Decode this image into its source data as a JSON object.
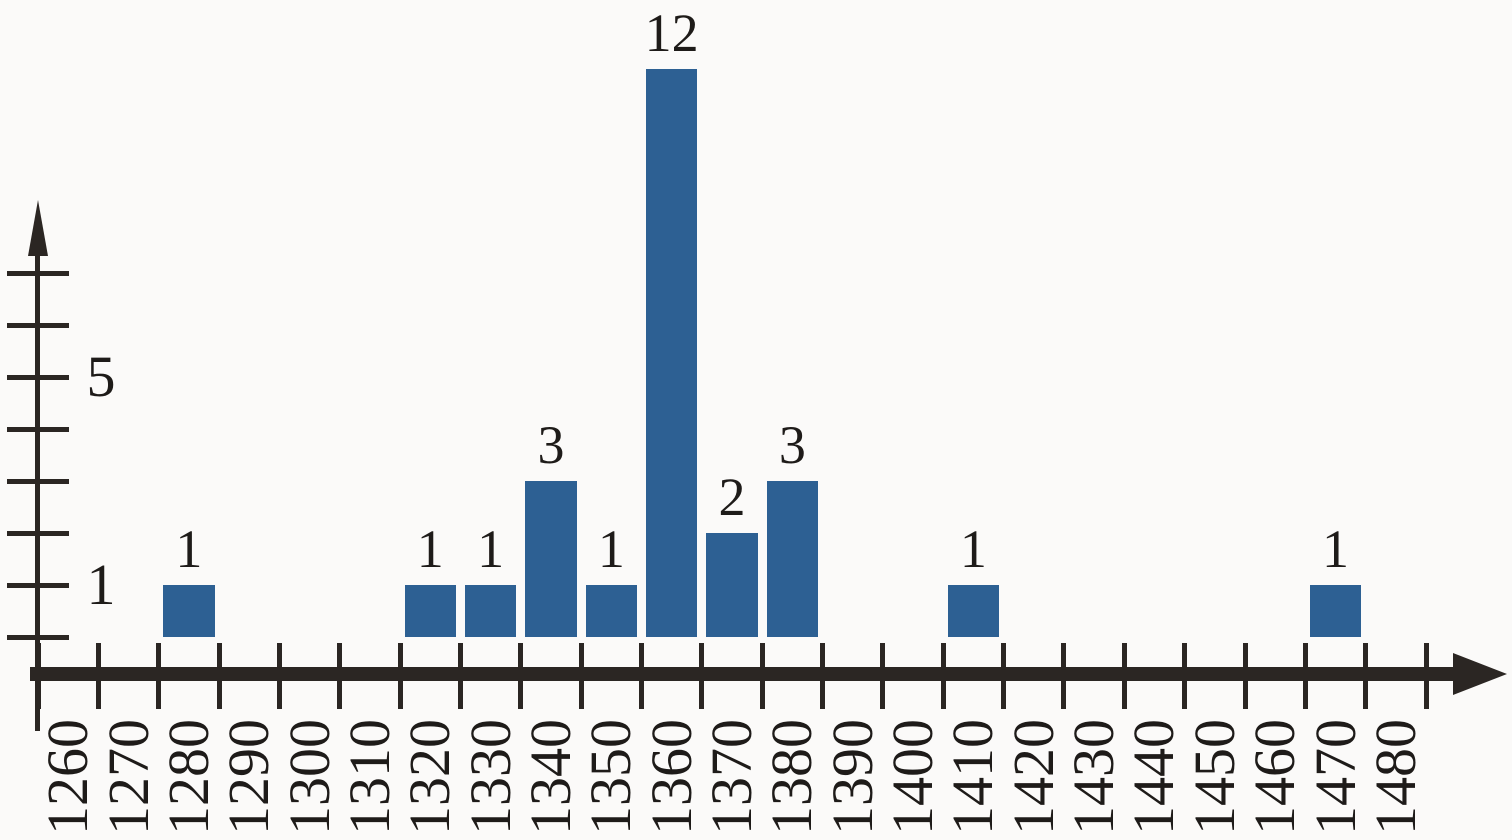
{
  "chart_data": {
    "type": "bar",
    "title": "",
    "xlabel": "",
    "ylabel": "",
    "categories": [
      "1260",
      "1270",
      "1280",
      "1290",
      "1300",
      "1310",
      "1320",
      "1330",
      "1340",
      "1350",
      "1360",
      "1370",
      "1380",
      "1390",
      "1400",
      "1410",
      "1420",
      "1430",
      "1440",
      "1450",
      "1460",
      "1470",
      "1480"
    ],
    "values": [
      0,
      0,
      1,
      0,
      0,
      0,
      1,
      1,
      3,
      1,
      12,
      2,
      3,
      0,
      0,
      1,
      0,
      0,
      0,
      0,
      0,
      1,
      0
    ],
    "bar_value_labels": [
      "",
      "",
      "1",
      "",
      "",
      "",
      "1",
      "1",
      "3",
      "1",
      "12",
      "2",
      "3",
      "",
      "",
      "1",
      "",
      "",
      "",
      "",
      "",
      "1",
      ""
    ],
    "y_axis": {
      "tick_values": [
        0,
        1,
        2,
        3,
        4,
        5,
        6,
        7
      ],
      "labeled_ticks": [
        {
          "value": 1,
          "label": "1"
        },
        {
          "value": 5,
          "label": "5"
        }
      ],
      "arrow": true
    },
    "x_axis": {
      "tick_count": 24,
      "labels_between_ticks": true,
      "arrow": true
    },
    "legend_position": "none",
    "grid": false,
    "ylim": [
      0,
      12
    ]
  },
  "colors": {
    "bar": "#2d6093",
    "axis": "#2b2623",
    "text": "#1e1b19",
    "background": "#fbfaf9"
  }
}
